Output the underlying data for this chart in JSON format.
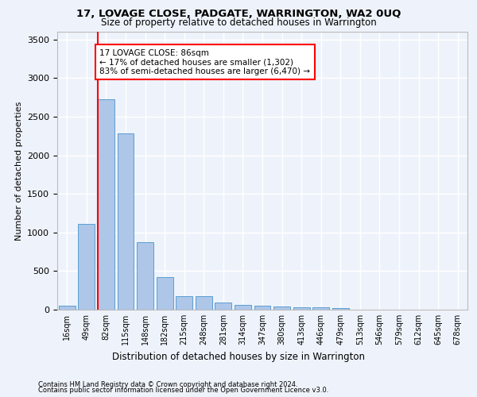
{
  "title1": "17, LOVAGE CLOSE, PADGATE, WARRINGTON, WA2 0UQ",
  "title2": "Size of property relative to detached houses in Warrington",
  "xlabel": "Distribution of detached houses by size in Warrington",
  "ylabel": "Number of detached properties",
  "categories": [
    "16sqm",
    "49sqm",
    "82sqm",
    "115sqm",
    "148sqm",
    "182sqm",
    "215sqm",
    "248sqm",
    "281sqm",
    "314sqm",
    "347sqm",
    "380sqm",
    "413sqm",
    "446sqm",
    "479sqm",
    "513sqm",
    "546sqm",
    "579sqm",
    "612sqm",
    "645sqm",
    "678sqm"
  ],
  "values": [
    55,
    1115,
    2730,
    2280,
    870,
    425,
    175,
    170,
    90,
    65,
    50,
    45,
    30,
    30,
    25,
    5,
    5,
    0,
    0,
    0,
    0
  ],
  "bar_color": "#aec6e8",
  "bar_edge_color": "#5a9fd4",
  "ylim": [
    0,
    3600
  ],
  "yticks": [
    0,
    500,
    1000,
    1500,
    2000,
    2500,
    3000,
    3500
  ],
  "annotation_text": "17 LOVAGE CLOSE: 86sqm\n← 17% of detached houses are smaller (1,302)\n83% of semi-detached houses are larger (6,470) →",
  "footer1": "Contains HM Land Registry data © Crown copyright and database right 2024.",
  "footer2": "Contains public sector information licensed under the Open Government Licence v3.0.",
  "background_color": "#eef3fb",
  "grid_color": "#ffffff"
}
